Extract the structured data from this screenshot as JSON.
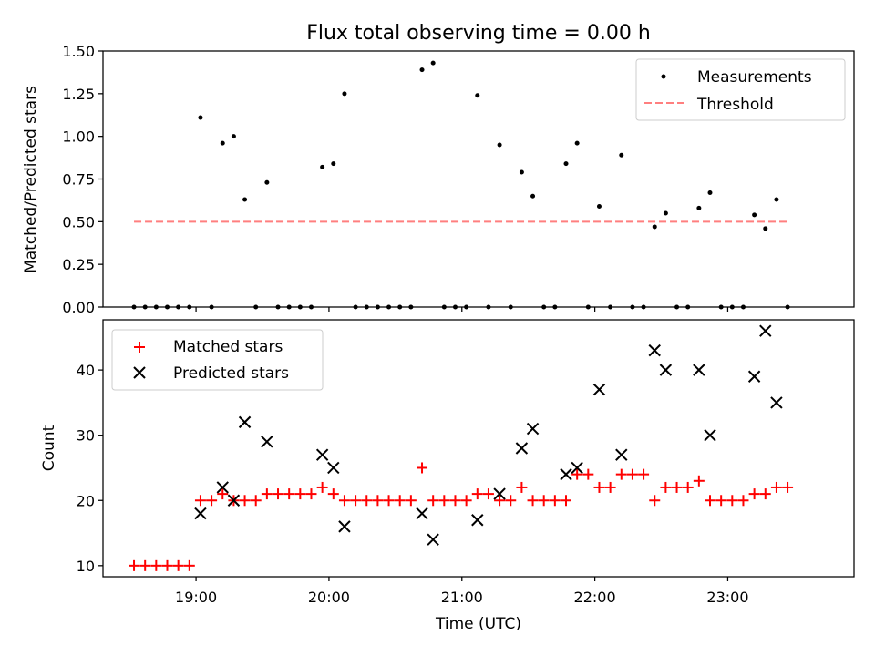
{
  "chart_data": [
    {
      "type": "scatter",
      "title": "Flux total observing time = 0.00 h",
      "xlabel": "",
      "ylabel": "Matched/Predicted stars",
      "ylim": [
        0,
        1.5
      ],
      "yticks": [
        "0.00",
        "0.25",
        "0.50",
        "0.75",
        "1.00",
        "1.25",
        "1.50"
      ],
      "xlim": [
        "18:18",
        "23:57"
      ],
      "x_tick_times": [
        "19:00",
        "20:00",
        "21:00",
        "22:00",
        "23:00"
      ],
      "legend_position": "upper right",
      "grid": false,
      "series": [
        {
          "name": "Measurements",
          "kind": "scatter",
          "marker": "dot",
          "color": "#000000",
          "points": [
            [
              "18:32",
              0
            ],
            [
              "18:37",
              0
            ],
            [
              "18:42",
              0
            ],
            [
              "18:47",
              0
            ],
            [
              "18:52",
              0
            ],
            [
              "18:57",
              0
            ],
            [
              "19:02",
              1.11
            ],
            [
              "19:07",
              0
            ],
            [
              "19:12",
              0.96
            ],
            [
              "19:17",
              1.0
            ],
            [
              "19:22",
              0.63
            ],
            [
              "19:27",
              0
            ],
            [
              "19:32",
              0.73
            ],
            [
              "19:37",
              0
            ],
            [
              "19:42",
              0
            ],
            [
              "19:47",
              0
            ],
            [
              "19:52",
              0
            ],
            [
              "19:57",
              0.82
            ],
            [
              "20:02",
              0.84
            ],
            [
              "20:07",
              1.25
            ],
            [
              "20:12",
              0
            ],
            [
              "20:17",
              0
            ],
            [
              "20:22",
              0
            ],
            [
              "20:27",
              0
            ],
            [
              "20:32",
              0
            ],
            [
              "20:37",
              0
            ],
            [
              "20:42",
              1.39
            ],
            [
              "20:47",
              1.43
            ],
            [
              "20:52",
              0
            ],
            [
              "20:57",
              0
            ],
            [
              "21:02",
              0
            ],
            [
              "21:07",
              1.24
            ],
            [
              "21:12",
              0
            ],
            [
              "21:17",
              0.95
            ],
            [
              "21:22",
              0
            ],
            [
              "21:27",
              0.79
            ],
            [
              "21:32",
              0.65
            ],
            [
              "21:37",
              0
            ],
            [
              "21:42",
              0
            ],
            [
              "21:47",
              0.84
            ],
            [
              "21:52",
              0.96
            ],
            [
              "21:57",
              0
            ],
            [
              "22:02",
              0.59
            ],
            [
              "22:07",
              0
            ],
            [
              "22:12",
              0.89
            ],
            [
              "22:17",
              0
            ],
            [
              "22:22",
              0
            ],
            [
              "22:27",
              0.47
            ],
            [
              "22:32",
              0.55
            ],
            [
              "22:37",
              0
            ],
            [
              "22:42",
              0
            ],
            [
              "22:47",
              0.58
            ],
            [
              "22:52",
              0.67
            ],
            [
              "22:57",
              0
            ],
            [
              "23:02",
              0
            ],
            [
              "23:07",
              0
            ],
            [
              "23:12",
              0.54
            ],
            [
              "23:17",
              0.46
            ],
            [
              "23:22",
              0.63
            ],
            [
              "23:27",
              0
            ]
          ]
        },
        {
          "name": "Threshold",
          "kind": "line",
          "style": "dashed",
          "color": "#ff7f7f",
          "points": [
            [
              "18:32",
              0.5
            ],
            [
              "23:27",
              0.5
            ]
          ]
        }
      ]
    },
    {
      "type": "scatter",
      "title": "",
      "xlabel": "Time (UTC)",
      "ylabel": "Count",
      "ylim": [
        8.3,
        47.7
      ],
      "yticks": [
        "10",
        "20",
        "30",
        "40"
      ],
      "xlim": [
        "18:18",
        "23:57"
      ],
      "x_tick_times": [
        "19:00",
        "20:00",
        "21:00",
        "22:00",
        "23:00"
      ],
      "x_tick_labels": [
        "19:00",
        "20:00",
        "21:00",
        "22:00",
        "23:00"
      ],
      "legend_position": "upper left",
      "grid": false,
      "series": [
        {
          "name": "Matched stars",
          "marker": "plus",
          "color": "#ff0000",
          "points": [
            [
              "18:32",
              10
            ],
            [
              "18:37",
              10
            ],
            [
              "18:42",
              10
            ],
            [
              "18:47",
              10
            ],
            [
              "18:52",
              10
            ],
            [
              "18:57",
              10
            ],
            [
              "19:02",
              20
            ],
            [
              "19:07",
              20
            ],
            [
              "19:12",
              21
            ],
            [
              "19:17",
              20
            ],
            [
              "19:22",
              20
            ],
            [
              "19:27",
              20
            ],
            [
              "19:32",
              21
            ],
            [
              "19:37",
              21
            ],
            [
              "19:42",
              21
            ],
            [
              "19:47",
              21
            ],
            [
              "19:52",
              21
            ],
            [
              "19:57",
              22
            ],
            [
              "20:02",
              21
            ],
            [
              "20:07",
              20
            ],
            [
              "20:12",
              20
            ],
            [
              "20:17",
              20
            ],
            [
              "20:22",
              20
            ],
            [
              "20:27",
              20
            ],
            [
              "20:32",
              20
            ],
            [
              "20:37",
              20
            ],
            [
              "20:42",
              25
            ],
            [
              "20:47",
              20
            ],
            [
              "20:52",
              20
            ],
            [
              "20:57",
              20
            ],
            [
              "21:02",
              20
            ],
            [
              "21:07",
              21
            ],
            [
              "21:12",
              21
            ],
            [
              "21:17",
              20
            ],
            [
              "21:22",
              20
            ],
            [
              "21:27",
              22
            ],
            [
              "21:32",
              20
            ],
            [
              "21:37",
              20
            ],
            [
              "21:42",
              20
            ],
            [
              "21:47",
              20
            ],
            [
              "21:52",
              24
            ],
            [
              "21:57",
              24
            ],
            [
              "22:02",
              22
            ],
            [
              "22:07",
              22
            ],
            [
              "22:12",
              24
            ],
            [
              "22:17",
              24
            ],
            [
              "22:22",
              24
            ],
            [
              "22:27",
              20
            ],
            [
              "22:32",
              22
            ],
            [
              "22:37",
              22
            ],
            [
              "22:42",
              22
            ],
            [
              "22:47",
              23
            ],
            [
              "22:52",
              20
            ],
            [
              "22:57",
              20
            ],
            [
              "23:02",
              20
            ],
            [
              "23:07",
              20
            ],
            [
              "23:12",
              21
            ],
            [
              "23:17",
              21
            ],
            [
              "23:22",
              22
            ],
            [
              "23:27",
              22
            ]
          ]
        },
        {
          "name": "Predicted stars",
          "marker": "x",
          "color": "#000000",
          "points": [
            [
              "19:02",
              18
            ],
            [
              "19:12",
              22
            ],
            [
              "19:17",
              20
            ],
            [
              "19:22",
              32
            ],
            [
              "19:32",
              29
            ],
            [
              "19:57",
              27
            ],
            [
              "20:02",
              25
            ],
            [
              "20:07",
              16
            ],
            [
              "20:42",
              18
            ],
            [
              "20:47",
              14
            ],
            [
              "21:07",
              17
            ],
            [
              "21:17",
              21
            ],
            [
              "21:27",
              28
            ],
            [
              "21:32",
              31
            ],
            [
              "21:47",
              24
            ],
            [
              "21:52",
              25
            ],
            [
              "22:02",
              37
            ],
            [
              "22:12",
              27
            ],
            [
              "22:27",
              43
            ],
            [
              "22:32",
              40
            ],
            [
              "22:47",
              40
            ],
            [
              "22:52",
              30
            ],
            [
              "23:12",
              39
            ],
            [
              "23:17",
              46
            ],
            [
              "23:22",
              35
            ]
          ]
        }
      ]
    }
  ]
}
